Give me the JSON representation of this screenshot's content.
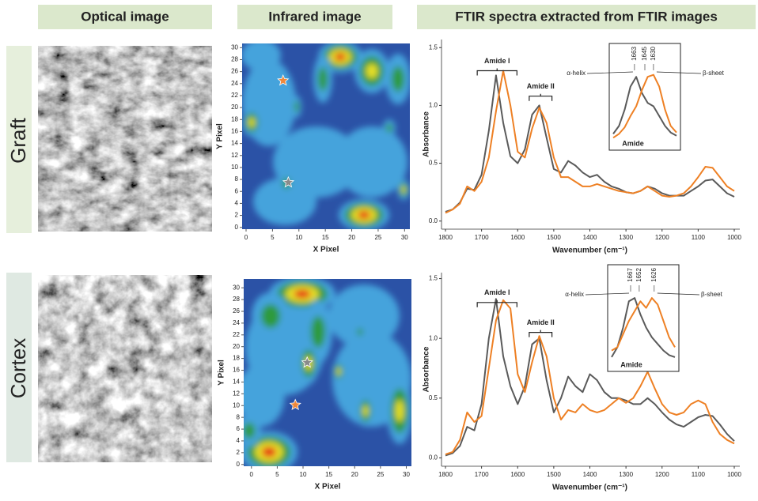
{
  "column_titles": [
    "Optical image",
    "Infrared image",
    "FTIR spectra extracted from FTIR images"
  ],
  "row_labels": [
    "Graft",
    "Cortex"
  ],
  "chart_data": [
    {
      "type": "heatmap-image",
      "xlabel": "X Pixel",
      "ylabel": "Y Pixel",
      "xlim": [
        -0.75,
        31
      ],
      "ylim": [
        -0.3,
        30.7
      ],
      "xticks": [
        0,
        5,
        10,
        15,
        20,
        25,
        30
      ],
      "yticks": [
        0,
        2,
        4,
        6,
        8,
        10,
        12,
        14,
        16,
        18,
        20,
        22,
        24,
        26,
        28,
        30
      ],
      "markers": [
        {
          "x": 7,
          "y": 24.5,
          "color": "#f0883a"
        },
        {
          "x": 8,
          "y": 7.5,
          "color": "#8a8a8a"
        }
      ]
    },
    {
      "type": "line",
      "xlabel": "Wavenumber (cm⁻¹)",
      "ylabel": "Absorbance",
      "xlim": [
        1800,
        1000
      ],
      "ylim": [
        -0.07,
        1.57
      ],
      "xticks": [
        1800,
        1700,
        1600,
        1500,
        1400,
        1300,
        1200,
        1100,
        1000
      ],
      "yticks": [
        {
          "value": 0,
          "label": "0.0"
        },
        {
          "value": 0.5,
          "label": "0.5"
        },
        {
          "value": 1,
          "label": "1.0"
        },
        {
          "value": 1.5,
          "label": "1.5"
        }
      ],
      "x": [
        1800,
        1780,
        1760,
        1740,
        1720,
        1700,
        1680,
        1660,
        1640,
        1620,
        1600,
        1580,
        1560,
        1540,
        1520,
        1500,
        1480,
        1460,
        1440,
        1420,
        1400,
        1380,
        1360,
        1340,
        1320,
        1300,
        1280,
        1260,
        1240,
        1220,
        1200,
        1180,
        1160,
        1140,
        1120,
        1100,
        1080,
        1060,
        1040,
        1020,
        1000
      ],
      "series": [
        {
          "color": "#5a5a5a",
          "values": [
            0.08,
            0.1,
            0.16,
            0.28,
            0.27,
            0.4,
            0.78,
            1.26,
            0.85,
            0.56,
            0.5,
            0.62,
            0.92,
            1.0,
            0.72,
            0.45,
            0.42,
            0.52,
            0.48,
            0.42,
            0.38,
            0.4,
            0.34,
            0.3,
            0.28,
            0.25,
            0.24,
            0.26,
            0.3,
            0.28,
            0.24,
            0.22,
            0.22,
            0.22,
            0.26,
            0.3,
            0.35,
            0.36,
            0.3,
            0.24,
            0.21
          ]
        },
        {
          "color": "#ee8024",
          "values": [
            0.07,
            0.1,
            0.15,
            0.3,
            0.26,
            0.34,
            0.55,
            0.95,
            1.3,
            1.0,
            0.6,
            0.55,
            0.8,
            0.98,
            0.85,
            0.55,
            0.38,
            0.38,
            0.34,
            0.3,
            0.3,
            0.32,
            0.3,
            0.28,
            0.26,
            0.25,
            0.24,
            0.26,
            0.3,
            0.26,
            0.22,
            0.21,
            0.22,
            0.24,
            0.3,
            0.38,
            0.47,
            0.46,
            0.38,
            0.3,
            0.26
          ]
        }
      ],
      "annotations": [
        "Amide I",
        "Amide II"
      ],
      "inset": {
        "xlim": [
          1700,
          1590
        ],
        "ylim": [
          0,
          1
        ],
        "peaks": [
          1663,
          1645,
          1630
        ],
        "labels": [
          "α-helix",
          "β-sheet",
          "Amide"
        ],
        "x": [
          1700,
          1690,
          1680,
          1670,
          1660,
          1650,
          1640,
          1630,
          1620,
          1610,
          1600,
          1590
        ],
        "series": [
          {
            "color": "#5a5a5a",
            "values": [
              0.08,
              0.2,
              0.45,
              0.8,
              0.95,
              0.7,
              0.55,
              0.5,
              0.35,
              0.2,
              0.1,
              0.05
            ]
          },
          {
            "color": "#ee8024",
            "values": [
              0.02,
              0.08,
              0.18,
              0.35,
              0.5,
              0.75,
              0.95,
              0.98,
              0.8,
              0.45,
              0.2,
              0.1
            ]
          }
        ]
      }
    },
    {
      "type": "heatmap-image",
      "xlabel": "X Pixel",
      "ylabel": "Y Pixel",
      "xlim": [
        -1.5,
        31
      ],
      "ylim": [
        -0.3,
        31.5
      ],
      "xticks": [
        0,
        5,
        10,
        15,
        20,
        25,
        30
      ],
      "yticks": [
        0,
        2,
        4,
        6,
        8,
        10,
        12,
        14,
        16,
        18,
        20,
        22,
        24,
        26,
        28,
        30
      ],
      "markers": [
        {
          "x": 10.8,
          "y": 17.3,
          "color": "#8a8a8a"
        },
        {
          "x": 8.5,
          "y": 10.1,
          "color": "#f0883a"
        }
      ]
    },
    {
      "type": "line",
      "xlabel": "Wavenumber (cm⁻¹)",
      "ylabel": "Absorbance",
      "xlim": [
        1800,
        1000
      ],
      "ylim": [
        -0.07,
        1.55
      ],
      "xticks": [
        1800,
        1700,
        1600,
        1500,
        1400,
        1300,
        1200,
        1100,
        1000
      ],
      "yticks": [
        {
          "value": 0,
          "label": "0.0"
        },
        {
          "value": 0.5,
          "label": "0.5"
        },
        {
          "value": 1,
          "label": "1.0"
        },
        {
          "value": 1.5,
          "label": "1.5"
        }
      ],
      "x": [
        1800,
        1780,
        1760,
        1740,
        1720,
        1700,
        1680,
        1660,
        1640,
        1620,
        1600,
        1580,
        1560,
        1540,
        1520,
        1500,
        1480,
        1460,
        1440,
        1420,
        1400,
        1380,
        1360,
        1340,
        1320,
        1300,
        1280,
        1260,
        1240,
        1220,
        1200,
        1180,
        1160,
        1140,
        1120,
        1100,
        1080,
        1060,
        1040,
        1020,
        1000
      ],
      "series": [
        {
          "color": "#5a5a5a",
          "values": [
            0.02,
            0.04,
            0.1,
            0.26,
            0.23,
            0.45,
            1.0,
            1.33,
            0.85,
            0.6,
            0.45,
            0.6,
            0.95,
            1.0,
            0.65,
            0.38,
            0.5,
            0.68,
            0.6,
            0.55,
            0.7,
            0.65,
            0.55,
            0.5,
            0.5,
            0.48,
            0.45,
            0.45,
            0.5,
            0.45,
            0.38,
            0.32,
            0.28,
            0.26,
            0.3,
            0.34,
            0.36,
            0.35,
            0.28,
            0.2,
            0.14
          ]
        },
        {
          "color": "#ee8024",
          "values": [
            0.03,
            0.05,
            0.15,
            0.38,
            0.3,
            0.35,
            0.75,
            1.15,
            1.32,
            1.25,
            0.7,
            0.55,
            0.8,
            1.02,
            0.85,
            0.5,
            0.32,
            0.4,
            0.38,
            0.45,
            0.4,
            0.38,
            0.4,
            0.45,
            0.5,
            0.46,
            0.5,
            0.6,
            0.72,
            0.58,
            0.45,
            0.38,
            0.36,
            0.38,
            0.45,
            0.48,
            0.45,
            0.3,
            0.2,
            0.15,
            0.12
          ]
        }
      ],
      "annotations": [
        "Amide I",
        "Amide II"
      ],
      "inset": {
        "xlim": [
          1700,
          1590
        ],
        "ylim": [
          0,
          1
        ],
        "peaks": [
          1667,
          1652,
          1626
        ],
        "labels": [
          "α-helix",
          "β-sheet",
          "Amide"
        ],
        "x": [
          1700,
          1690,
          1680,
          1670,
          1660,
          1650,
          1640,
          1630,
          1620,
          1610,
          1600,
          1590
        ],
        "series": [
          {
            "color": "#5a5a5a",
            "values": [
              0.05,
              0.2,
              0.5,
              0.9,
              0.95,
              0.7,
              0.5,
              0.35,
              0.25,
              0.15,
              0.08,
              0.05
            ]
          },
          {
            "color": "#ee8024",
            "values": [
              0.15,
              0.2,
              0.4,
              0.6,
              0.75,
              0.9,
              0.8,
              0.95,
              0.85,
              0.6,
              0.35,
              0.2
            ]
          }
        ]
      }
    }
  ]
}
